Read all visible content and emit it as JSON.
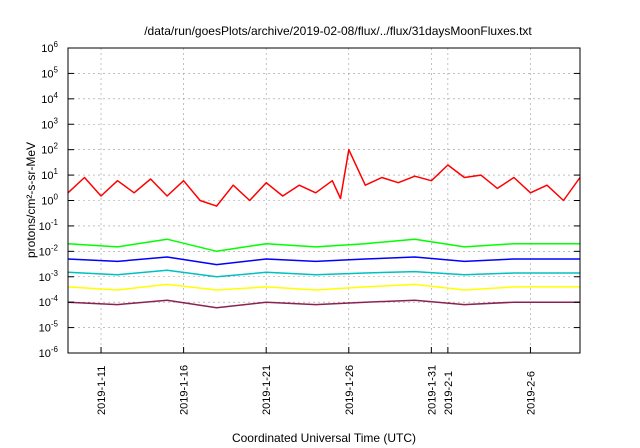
{
  "chart_data": {
    "type": "line",
    "title": "/data/run/goesPlots/archive/2019-02-08/flux/../flux/31daysMoonFluxes.txt",
    "xlabel": "Coordinated Universal Time (UTC)",
    "ylabel": "protons/cm²-s-sr-MeV",
    "yscale": "log",
    "ylim": [
      1e-06,
      1000000.0
    ],
    "xlim": [
      "2019-01-09",
      "2019-02-09"
    ],
    "grid": true,
    "legend": "none",
    "x_ticks": [
      {
        "date": "2019-01-11",
        "label": "2019-1-11"
      },
      {
        "date": "2019-01-16",
        "label": "2019-1-16"
      },
      {
        "date": "2019-01-21",
        "label": "2019-1-21"
      },
      {
        "date": "2019-01-26",
        "label": "2019-1-26"
      },
      {
        "date": "2019-01-31",
        "label": "2019-1-31"
      },
      {
        "date": "2019-02-01",
        "label": "2019-2-1"
      },
      {
        "date": "2019-02-06",
        "label": "2019-2-6"
      }
    ],
    "y_ticks": [
      {
        "base": "10",
        "exp": "-6"
      },
      {
        "base": "10",
        "exp": "-5"
      },
      {
        "base": "10",
        "exp": "-4"
      },
      {
        "base": "10",
        "exp": "-3"
      },
      {
        "base": "10",
        "exp": "-2"
      },
      {
        "base": "10",
        "exp": "-1"
      },
      {
        "base": "10",
        "exp": "0"
      },
      {
        "base": "10",
        "exp": "1"
      },
      {
        "base": "10",
        "exp": "2"
      },
      {
        "base": "10",
        "exp": "3"
      },
      {
        "base": "10",
        "exp": "4"
      },
      {
        "base": "10",
        "exp": "5"
      },
      {
        "base": "10",
        "exp": "6"
      }
    ],
    "series": [
      {
        "color": "#ff0000",
        "x": [
          "2019-01-09",
          "2019-01-10",
          "2019-01-11",
          "2019-01-12",
          "2019-01-13",
          "2019-01-14",
          "2019-01-15",
          "2019-01-16",
          "2019-01-17",
          "2019-01-18",
          "2019-01-19",
          "2019-01-20",
          "2019-01-21",
          "2019-01-22",
          "2019-01-23",
          "2019-01-24",
          "2019-01-25",
          "2019-01-25T12",
          "2019-01-26",
          "2019-01-27",
          "2019-01-28",
          "2019-01-29",
          "2019-01-30",
          "2019-01-31",
          "2019-02-01",
          "2019-02-02",
          "2019-02-03",
          "2019-02-04",
          "2019-02-05",
          "2019-02-06",
          "2019-02-07",
          "2019-02-08",
          "2019-02-09"
        ],
        "y": [
          2,
          8,
          1.5,
          6,
          2,
          7,
          1.5,
          6,
          1,
          0.6,
          4,
          1,
          5,
          1.5,
          4,
          2,
          6,
          1.2,
          100,
          4,
          8,
          5,
          9,
          6,
          25,
          8,
          10,
          3,
          8,
          2,
          4,
          1,
          8
        ]
      },
      {
        "color": "#00ff00",
        "x": [
          "2019-01-09",
          "2019-01-12",
          "2019-01-15",
          "2019-01-18",
          "2019-01-21",
          "2019-01-24",
          "2019-01-27",
          "2019-01-30",
          "2019-02-02",
          "2019-02-05",
          "2019-02-09"
        ],
        "y": [
          0.02,
          0.015,
          0.03,
          0.01,
          0.02,
          0.015,
          0.02,
          0.03,
          0.015,
          0.02,
          0.02
        ]
      },
      {
        "color": "#0000ff",
        "x": [
          "2019-01-09",
          "2019-01-12",
          "2019-01-15",
          "2019-01-18",
          "2019-01-21",
          "2019-01-24",
          "2019-01-27",
          "2019-01-30",
          "2019-02-02",
          "2019-02-05",
          "2019-02-09"
        ],
        "y": [
          0.005,
          0.004,
          0.006,
          0.003,
          0.005,
          0.004,
          0.005,
          0.006,
          0.004,
          0.005,
          0.005
        ]
      },
      {
        "color": "#00c0c0",
        "x": [
          "2019-01-09",
          "2019-01-12",
          "2019-01-15",
          "2019-01-18",
          "2019-01-21",
          "2019-01-24",
          "2019-01-27",
          "2019-01-30",
          "2019-02-02",
          "2019-02-05",
          "2019-02-09"
        ],
        "y": [
          0.0015,
          0.0012,
          0.0018,
          0.001,
          0.0015,
          0.0012,
          0.0014,
          0.0016,
          0.0012,
          0.0014,
          0.0014
        ]
      },
      {
        "color": "#ffff00",
        "x": [
          "2019-01-09",
          "2019-01-12",
          "2019-01-15",
          "2019-01-18",
          "2019-01-21",
          "2019-01-24",
          "2019-01-27",
          "2019-01-30",
          "2019-02-02",
          "2019-02-05",
          "2019-02-09"
        ],
        "y": [
          0.0004,
          0.0003,
          0.0005,
          0.0003,
          0.0004,
          0.0003,
          0.0004,
          0.0005,
          0.0003,
          0.0004,
          0.0004
        ]
      },
      {
        "color": "#8b2252",
        "x": [
          "2019-01-09",
          "2019-01-12",
          "2019-01-15",
          "2019-01-18",
          "2019-01-21",
          "2019-01-24",
          "2019-01-27",
          "2019-01-30",
          "2019-02-02",
          "2019-02-05",
          "2019-02-09"
        ],
        "y": [
          0.0001,
          8e-05,
          0.00012,
          6e-05,
          0.0001,
          8e-05,
          0.0001,
          0.00012,
          8e-05,
          0.0001,
          0.0001
        ]
      }
    ]
  }
}
